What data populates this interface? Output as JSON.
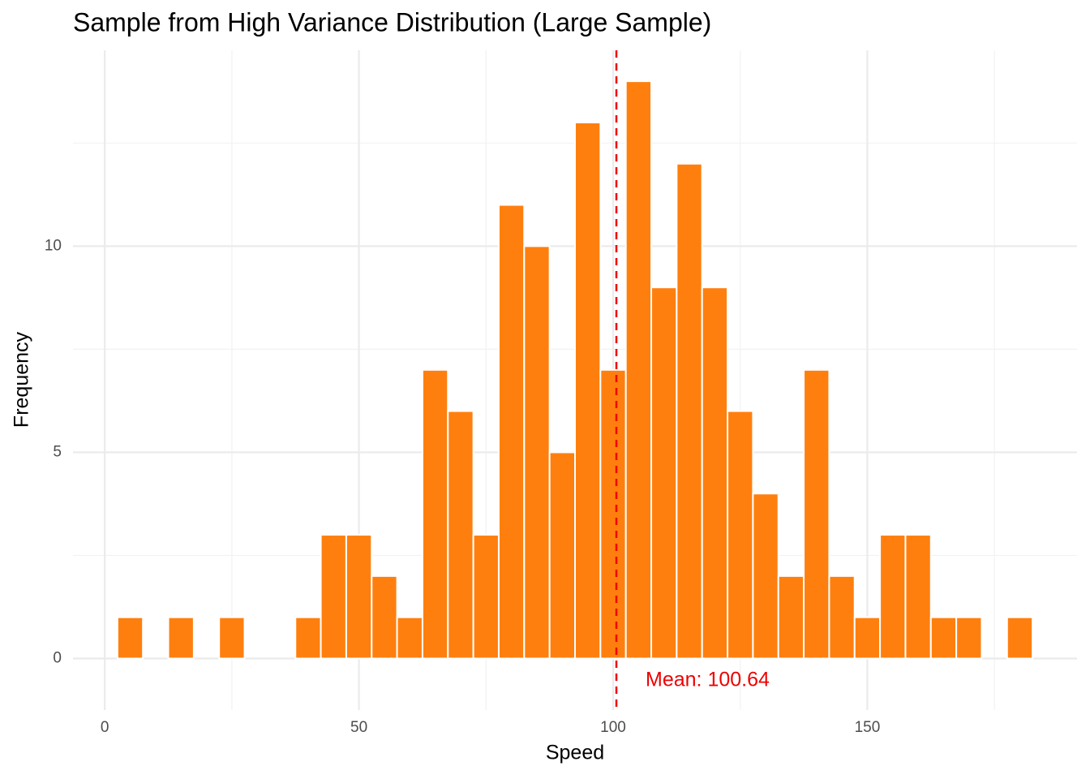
{
  "chart_data": {
    "type": "histogram",
    "title": "Sample from High Variance Distribution (Large Sample)",
    "x_label": "Speed",
    "y_label": "Frequency",
    "bins": [
      2.5,
      7.5,
      12.5,
      17.5,
      22.5,
      27.5,
      32.5,
      37.5,
      42.5,
      47.5,
      52.5,
      57.5,
      62.5,
      67.5,
      72.5,
      77.5,
      82.5,
      87.5,
      92.5,
      97.5,
      102.5,
      107.5,
      112.5,
      117.5,
      122.5,
      127.5,
      132.5,
      137.5,
      142.5,
      147.5,
      152.5,
      157.5,
      162.5,
      167.5,
      172.5,
      177.5,
      182.5
    ],
    "values": [
      1,
      0,
      1,
      0,
      1,
      0,
      0,
      1,
      3,
      3,
      2,
      1,
      7,
      6,
      3,
      11,
      10,
      5,
      13,
      7,
      14,
      9,
      12,
      9,
      6,
      4,
      2,
      7,
      2,
      1,
      3,
      3,
      1,
      1,
      0,
      1
    ],
    "color": "#ff7f0e",
    "xlim": [
      -6.25,
      191.25
    ],
    "ylim": [
      -1.25,
      14.75
    ],
    "xticks": [
      0,
      50,
      100,
      150
    ],
    "yticks": [
      0,
      5,
      10
    ],
    "minor_xticks": [
      25,
      75,
      125,
      175
    ],
    "minor_yticks": [
      2.5,
      7.5,
      12.5
    ],
    "grid": true,
    "mean_line": {
      "value": 100.64,
      "label": "Mean: 100.64",
      "color": "#ee0000"
    }
  }
}
